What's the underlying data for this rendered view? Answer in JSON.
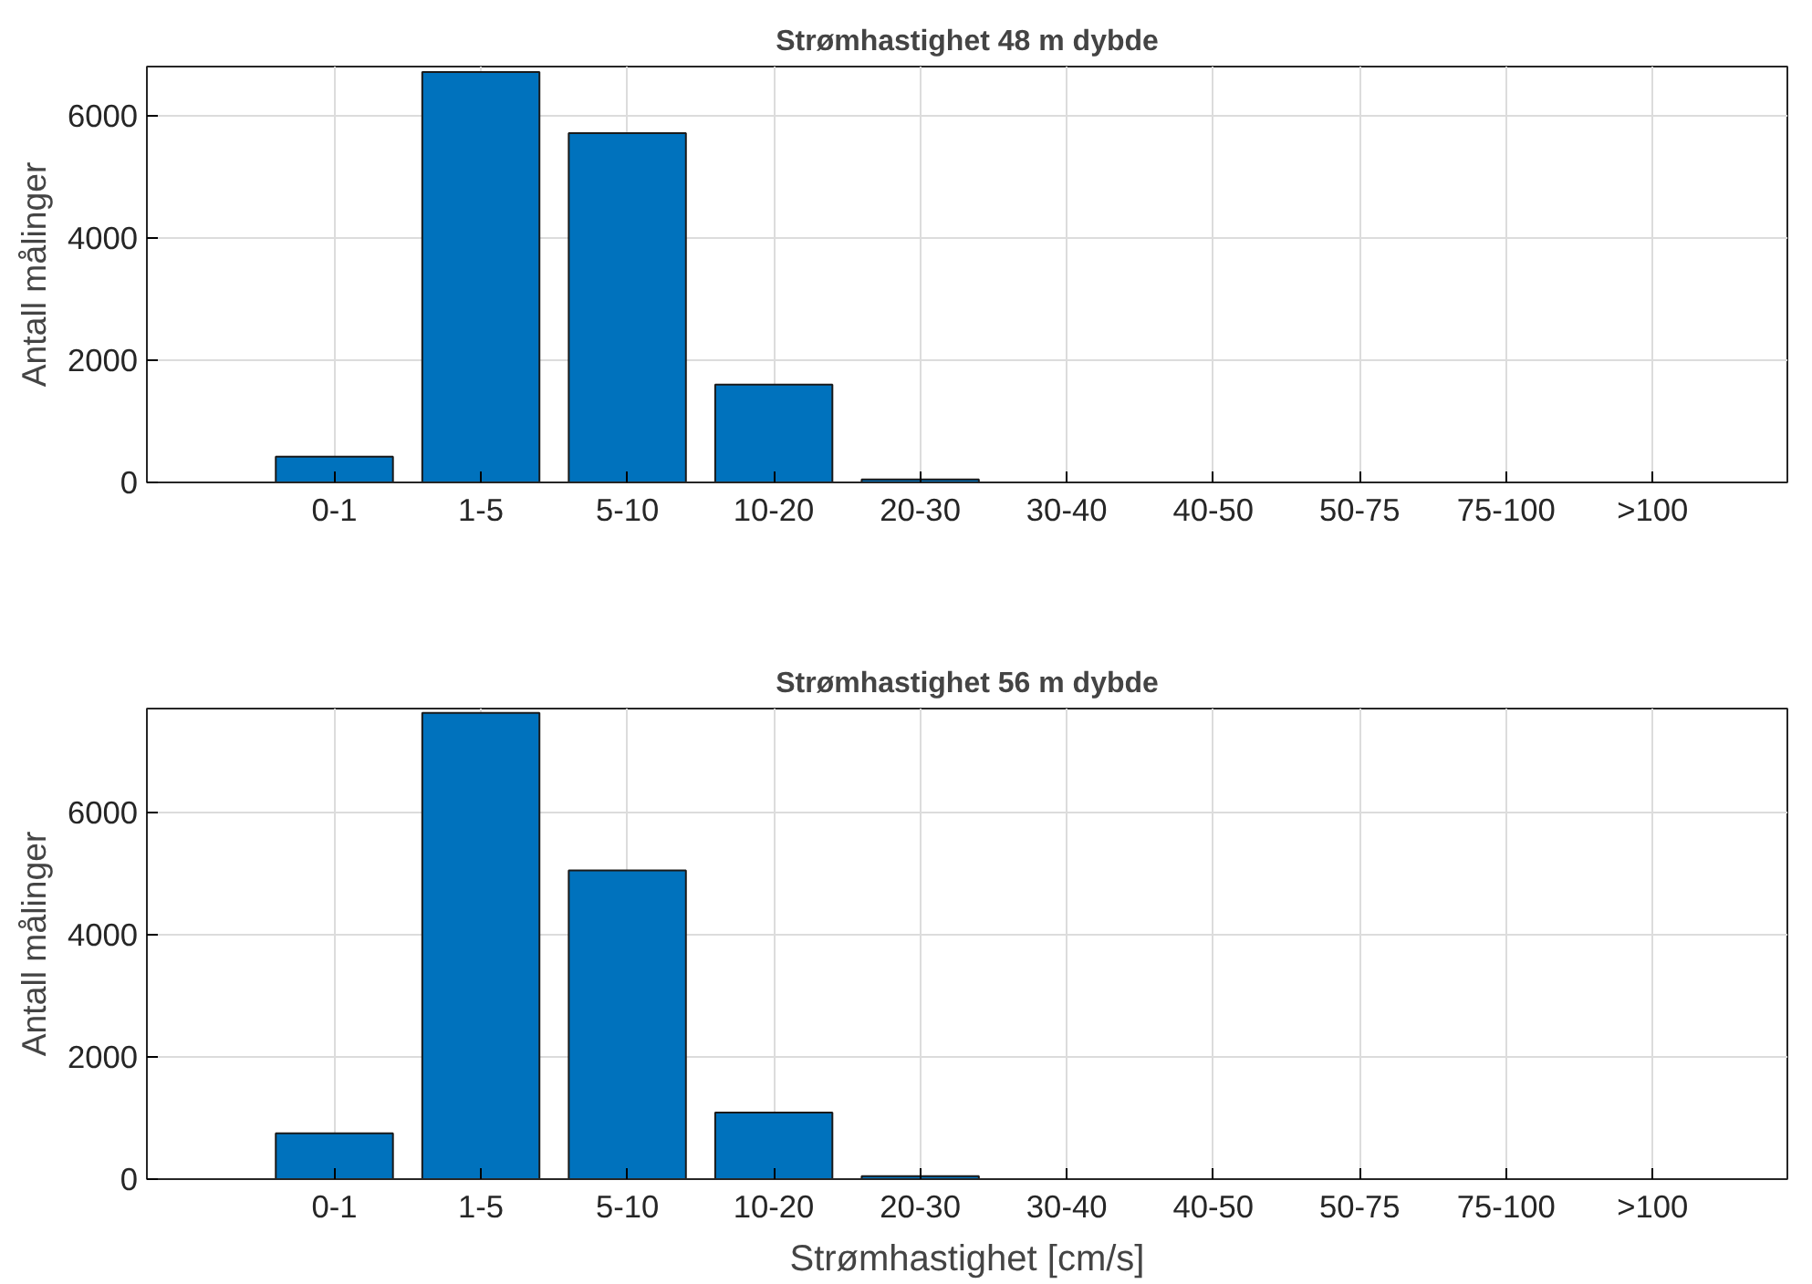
{
  "chart_data": [
    {
      "type": "bar",
      "title": "Strømhastighet 48 m dybde",
      "ylabel": "Antall målinger",
      "categories": [
        "0-1",
        "1-5",
        "5-10",
        "10-20",
        "20-30",
        "30-40",
        "40-50",
        "50-75",
        "75-100",
        ">100"
      ],
      "values": [
        420,
        6710,
        5710,
        1600,
        50,
        0,
        0,
        0,
        0,
        0
      ],
      "color": "#0072bd",
      "ylim": [
        0,
        6800
      ],
      "yticks": [
        0,
        2000,
        4000,
        6000
      ],
      "grid": true
    },
    {
      "type": "bar",
      "title": "Strømhastighet 56 m dybde",
      "xlabel": "Strømhastighet [cm/s]",
      "ylabel": "Antall målinger",
      "categories": [
        "0-1",
        "1-5",
        "5-10",
        "10-20",
        "20-30",
        "30-40",
        "40-50",
        "50-75",
        "75-100",
        ">100"
      ],
      "values": [
        750,
        7630,
        5050,
        1090,
        50,
        0,
        0,
        0,
        0,
        0
      ],
      "color": "#0072bd",
      "ylim": [
        0,
        7700
      ],
      "yticks": [
        0,
        2000,
        4000,
        6000
      ],
      "grid": true
    }
  ]
}
